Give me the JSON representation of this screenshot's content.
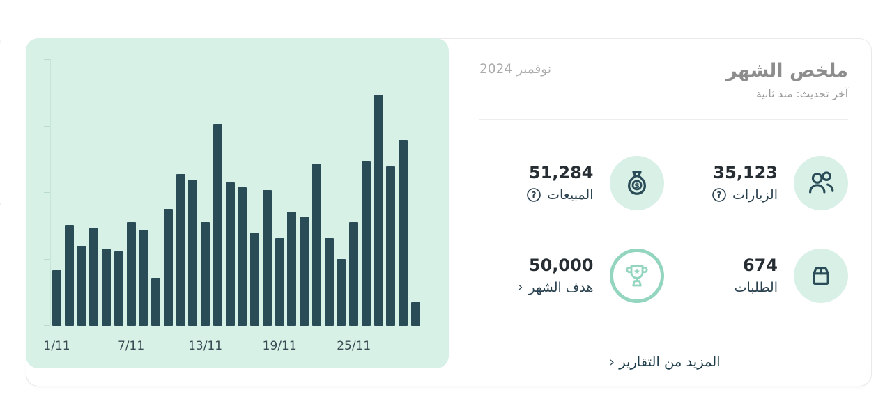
{
  "summary": {
    "title": "ملخص الشهر",
    "last_updated": "آخر تحديث: منذ ثانية",
    "month": "نوفمبر 2024"
  },
  "stats": {
    "visits": {
      "value": "35,123",
      "label": "الزيارات"
    },
    "sales": {
      "value": "51,284",
      "label": "المبيعات"
    },
    "orders": {
      "value": "674",
      "label": "الطلبات"
    },
    "goal": {
      "value": "50,000",
      "label": "هدف الشهر"
    }
  },
  "ui": {
    "more_reports": "المزيد من التقارير",
    "chevron": "‹",
    "help_glyph": "?"
  },
  "colors": {
    "chart_background": "#d7f1e7",
    "bar": "#294c56",
    "stat_circle_background": "#d8f0e6",
    "goal_ring_green": "#93d5bf",
    "dark_text": "#262d33",
    "label_text": "#29404e",
    "muted_title": "#8d8d8d",
    "link_text": "#1f3d4a"
  },
  "chart_data": {
    "type": "bar",
    "title": "",
    "xlabel": "",
    "ylabel": "",
    "categories": [
      "1/11",
      "2/11",
      "3/11",
      "4/11",
      "5/11",
      "6/11",
      "7/11",
      "8/11",
      "9/11",
      "10/11",
      "11/11",
      "12/11",
      "13/11",
      "14/11",
      "15/11",
      "16/11",
      "17/11",
      "18/11",
      "19/11",
      "20/11",
      "21/11",
      "22/11",
      "23/11",
      "24/11",
      "25/11",
      "26/11",
      "27/11",
      "28/11",
      "29/11",
      "30/11"
    ],
    "values": [
      21,
      38,
      30,
      37,
      29,
      28,
      39,
      36,
      18,
      44,
      57,
      55,
      39,
      76,
      54,
      52,
      35,
      51,
      33,
      43,
      41,
      61,
      33,
      25,
      39,
      62,
      87,
      60,
      70,
      9
    ],
    "value_unit": "percent of unlabeled y-axis max",
    "ylim": [
      0,
      100
    ],
    "shown_x_ticks": [
      "1/11",
      "7/11",
      "13/11",
      "19/11",
      "25/11"
    ],
    "y_tick_count": 5,
    "grid": false,
    "legend": "none"
  }
}
